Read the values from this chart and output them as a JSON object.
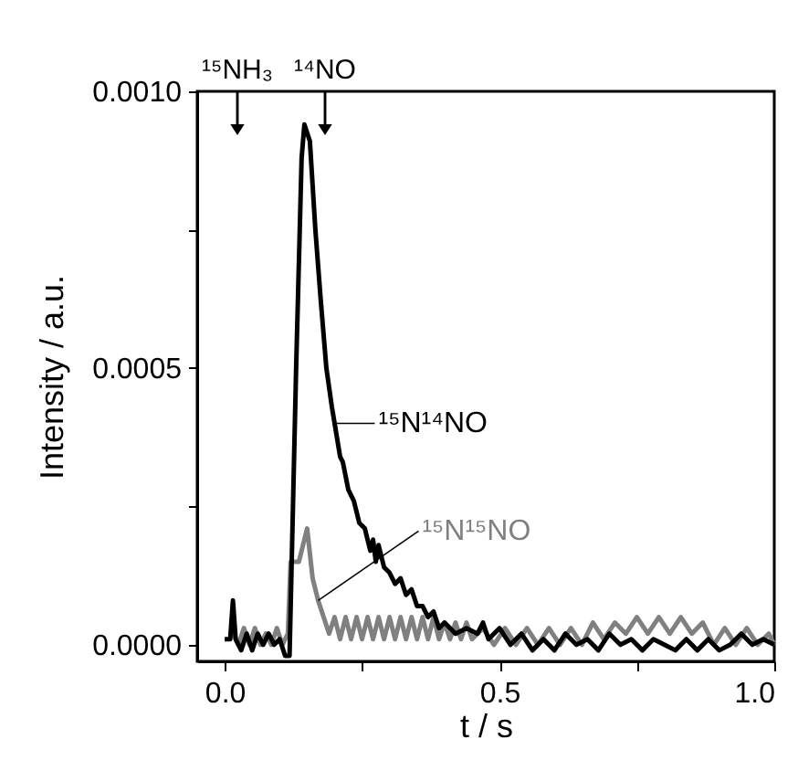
{
  "chart_data": {
    "type": "line",
    "xlabel": "t / s",
    "ylabel": "Intensity / a.u.",
    "xlim": [
      -0.05,
      1.0
    ],
    "ylim": [
      -3e-05,
      0.001
    ],
    "xticks": [
      {
        "value": 0,
        "label": "0.0"
      },
      {
        "value": 0.25,
        "label": null
      },
      {
        "value": 0.5,
        "label": "0.5"
      },
      {
        "value": 0.75,
        "label": null
      },
      {
        "value": 1.0,
        "label": "1.0"
      }
    ],
    "yticks": [
      {
        "value": 0,
        "label": "0.0000"
      },
      {
        "value": 0.00025,
        "label": null
      },
      {
        "value": 0.0005,
        "label": "0.0005"
      },
      {
        "value": 0.00075,
        "label": null
      },
      {
        "value": 0.001,
        "label": "0.0010"
      }
    ],
    "annotations": [
      "¹⁵NH₃",
      "¹⁴NO"
    ],
    "series": [
      {
        "name": "¹⁵N¹⁵NO",
        "color": "#808080",
        "x": [
          0.016,
          0.025,
          0.035,
          0.045,
          0.055,
          0.065,
          0.075,
          0.085,
          0.095,
          0.105,
          0.115,
          0.12,
          0.135,
          0.15,
          0.16,
          0.17,
          0.18,
          0.19,
          0.2,
          0.21,
          0.22,
          0.23,
          0.24,
          0.25,
          0.26,
          0.27,
          0.28,
          0.29,
          0.3,
          0.31,
          0.32,
          0.33,
          0.34,
          0.35,
          0.36,
          0.37,
          0.38,
          0.39,
          0.4,
          0.41,
          0.42,
          0.43,
          0.44,
          0.45,
          0.47,
          0.49,
          0.51,
          0.53,
          0.55,
          0.57,
          0.59,
          0.61,
          0.63,
          0.65,
          0.67,
          0.69,
          0.71,
          0.73,
          0.75,
          0.77,
          0.79,
          0.81,
          0.83,
          0.85,
          0.87,
          0.89,
          0.91,
          0.93,
          0.95,
          0.97,
          0.99,
          1.0
        ],
        "values": [
          2e-05,
          0.0,
          3e-05,
          0.0,
          3e-05,
          0.0,
          2e-05,
          0.0,
          3e-05,
          0.0,
          2e-05,
          0.00015,
          0.00015,
          0.00021,
          0.00012,
          8e-05,
          5e-05,
          2e-05,
          5e-05,
          1e-05,
          5e-05,
          1e-05,
          5e-05,
          1e-05,
          5e-05,
          1e-05,
          5e-05,
          1e-05,
          5e-05,
          1e-05,
          5e-05,
          1e-05,
          5e-05,
          1e-05,
          5e-05,
          1e-05,
          5e-05,
          1e-05,
          4e-05,
          1e-05,
          4e-05,
          1e-05,
          4e-05,
          1e-05,
          3e-05,
          0.0,
          3e-05,
          0.0,
          3e-05,
          0.0,
          3e-05,
          0.0,
          3e-05,
          0.0,
          4e-05,
          1e-05,
          4e-05,
          2e-05,
          5e-05,
          2e-05,
          5e-05,
          2e-05,
          5e-05,
          2e-05,
          4e-05,
          0.0,
          3e-05,
          0.0,
          3e-05,
          0.0,
          2e-05,
          0.0
        ]
      },
      {
        "name": "¹⁵N¹⁴NO",
        "color": "#000000",
        "x": [
          0.0,
          0.01,
          0.015,
          0.02,
          0.03,
          0.04,
          0.05,
          0.06,
          0.07,
          0.08,
          0.09,
          0.1,
          0.11,
          0.118,
          0.13,
          0.14,
          0.145,
          0.155,
          0.165,
          0.175,
          0.185,
          0.195,
          0.2,
          0.21,
          0.215,
          0.225,
          0.235,
          0.245,
          0.255,
          0.265,
          0.27,
          0.275,
          0.28,
          0.29,
          0.3,
          0.31,
          0.32,
          0.33,
          0.34,
          0.35,
          0.36,
          0.37,
          0.38,
          0.39,
          0.4,
          0.42,
          0.44,
          0.46,
          0.47,
          0.48,
          0.5,
          0.52,
          0.54,
          0.56,
          0.58,
          0.6,
          0.62,
          0.64,
          0.66,
          0.68,
          0.7,
          0.72,
          0.74,
          0.76,
          0.78,
          0.8,
          0.82,
          0.84,
          0.86,
          0.88,
          0.9,
          0.92,
          0.94,
          0.96,
          0.98,
          1.0
        ],
        "values": [
          1e-05,
          1e-05,
          8e-05,
          1e-05,
          -1e-05,
          2e-05,
          -1e-05,
          2e-05,
          0.0,
          2e-05,
          0.0,
          1e-05,
          -2e-05,
          -2e-05,
          0.0005,
          0.00088,
          0.00094,
          0.00091,
          0.00075,
          0.00062,
          0.0005,
          0.00043,
          0.0004,
          0.00034,
          0.00033,
          0.00028,
          0.00026,
          0.00022,
          0.00021,
          0.00017,
          0.00019,
          0.00015,
          0.00018,
          0.00014,
          0.00013,
          0.00011,
          0.00012,
          9e-05,
          0.0001,
          7e-05,
          7e-05,
          5e-05,
          6e-05,
          3e-05,
          4e-05,
          2e-05,
          3e-05,
          2e-05,
          4e-05,
          1e-05,
          3e-05,
          0.0,
          2e-05,
          -1e-05,
          1e-05,
          -1e-05,
          2e-05,
          0.0,
          1e-05,
          -1e-05,
          2e-05,
          0.0,
          1e-05,
          -1e-05,
          1e-05,
          0.0,
          -1e-05,
          1e-05,
          -1e-05,
          1e-05,
          -1e-05,
          0.0,
          2e-05,
          0.0,
          1e-05,
          0.0
        ]
      }
    ]
  }
}
